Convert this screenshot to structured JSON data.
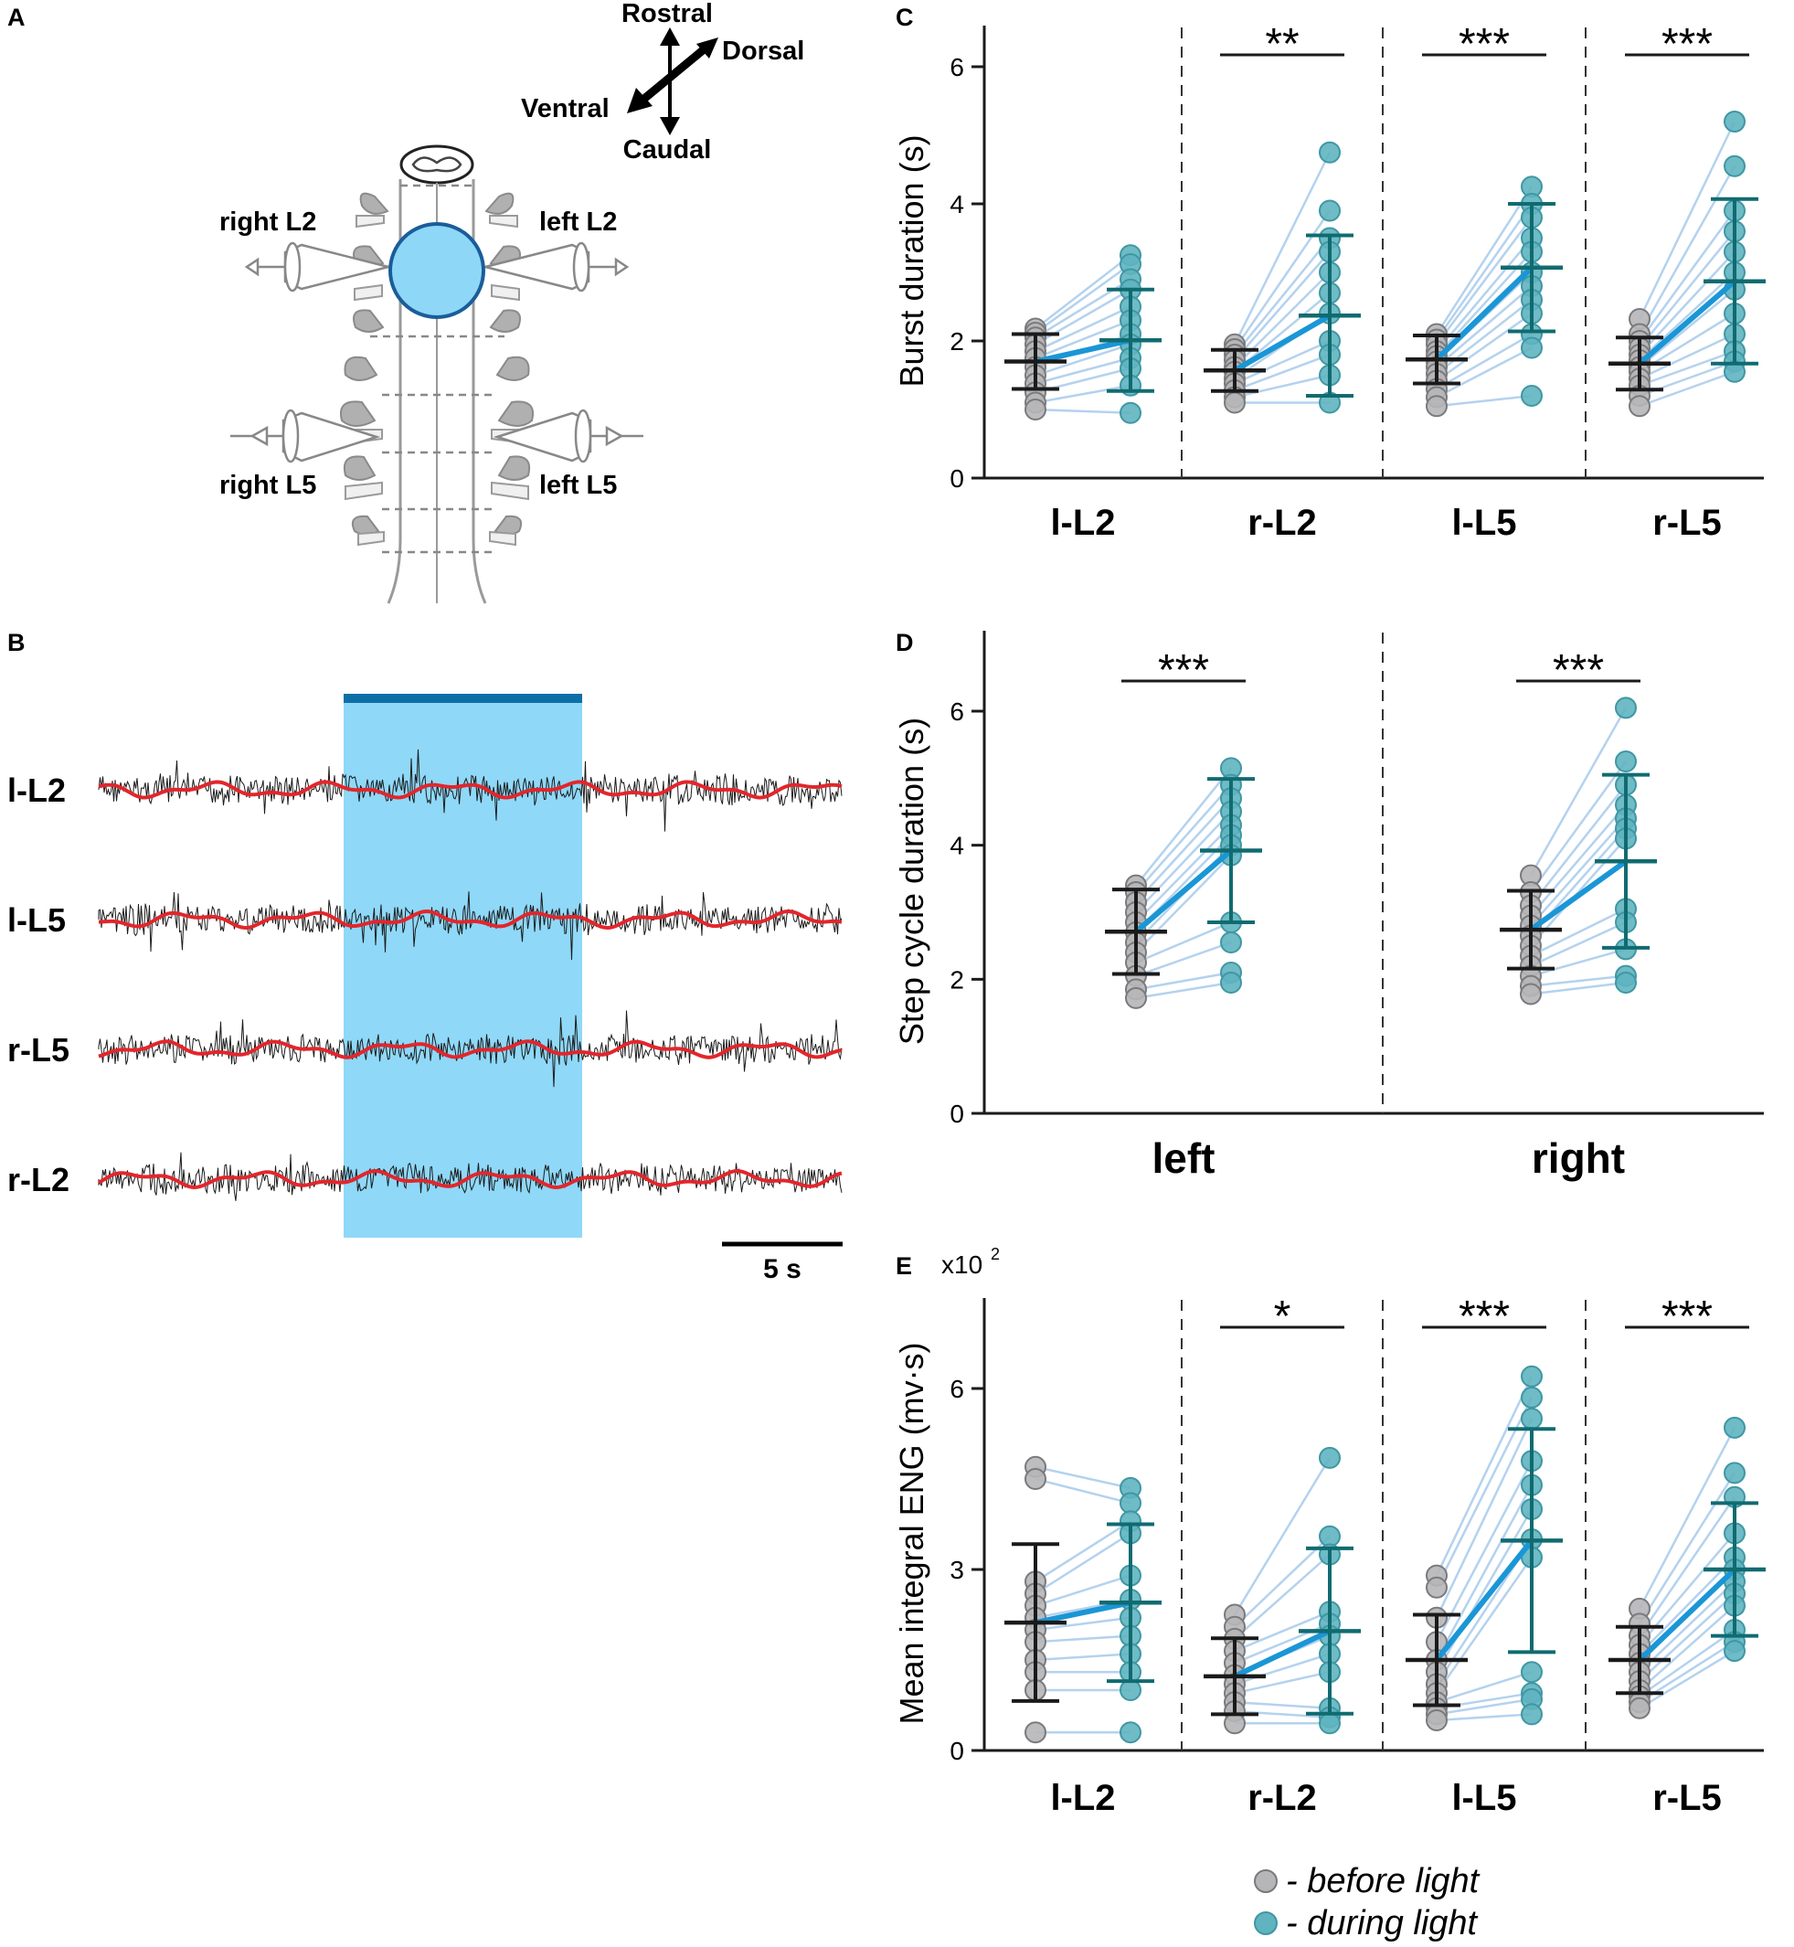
{
  "colors": {
    "before_fill": "#b6b6b8",
    "before_stroke": "#7a7a7c",
    "during_fill": "#5fb4c0",
    "during_stroke": "#3f97a3",
    "paired_line": "#b4d2ee",
    "mean_line": "#1a96d6",
    "before_bar": "#1a1a1a",
    "during_bar": "#106b70",
    "light": "#8fd8f8",
    "light_bar": "#0e6fa8",
    "trace": "#1a1a1a",
    "envelope": "#e2262c"
  },
  "panels": {
    "A": {
      "label": "A",
      "orientation": {
        "rostral": "Rostral",
        "dorsal": "Dorsal",
        "ventral": "Ventral",
        "caudal": "Caudal"
      },
      "roots": {
        "right_l2": "right L2",
        "left_l2": "left L2",
        "right_l5": "right L5",
        "left_l5": "left L5"
      }
    },
    "B": {
      "label": "B",
      "traces": [
        "l-L2",
        "l-L5",
        "r-L5",
        "r-L2"
      ],
      "scalebar": "5 s"
    },
    "C": {
      "label": "C"
    },
    "D": {
      "label": "D"
    },
    "E": {
      "label": "E"
    }
  },
  "legend": {
    "before": "- before light",
    "during": "- during light"
  },
  "chart_data": [
    {
      "id": "C",
      "type": "scatter",
      "ylabel": "Burst duration (s)",
      "ylim": [
        0,
        6.6
      ],
      "yticks": [
        "0",
        "2",
        "4",
        "6"
      ],
      "ytick_values": [
        0,
        2,
        4,
        6
      ],
      "categories": [
        "l-L2",
        "r-L2",
        "l-L5",
        "r-L5"
      ],
      "significance": [
        "",
        "**",
        "***",
        "***"
      ],
      "before": [
        [
          2.18,
          2.12,
          2.05,
          1.95,
          1.85,
          1.75,
          1.62,
          1.5,
          1.38,
          1.25,
          1.1,
          1.0
        ],
        [
          1.95,
          1.88,
          1.8,
          1.72,
          1.62,
          1.55,
          1.45,
          1.38,
          1.28,
          1.18,
          1.1
        ],
        [
          2.1,
          2.02,
          1.95,
          1.85,
          1.78,
          1.7,
          1.62,
          1.52,
          1.42,
          1.3,
          1.18,
          1.05
        ],
        [
          2.32,
          2.1,
          2.0,
          1.9,
          1.8,
          1.72,
          1.62,
          1.55,
          1.45,
          1.35,
          1.2,
          1.05
        ]
      ],
      "during": [
        [
          3.25,
          3.12,
          2.9,
          2.75,
          2.5,
          2.3,
          2.1,
          1.95,
          1.75,
          1.6,
          1.35,
          0.95
        ],
        [
          4.75,
          3.9,
          3.5,
          3.3,
          3.0,
          2.7,
          2.4,
          2.0,
          1.8,
          1.5,
          1.1
        ],
        [
          4.25,
          4.0,
          3.8,
          3.5,
          3.3,
          3.0,
          2.8,
          2.6,
          2.4,
          2.1,
          1.9,
          1.2
        ],
        [
          5.2,
          4.55,
          3.9,
          3.6,
          3.3,
          3.0,
          2.75,
          2.4,
          2.1,
          1.85,
          1.7,
          1.55
        ]
      ],
      "before_mean": [
        1.7,
        1.57,
        1.73,
        1.67
      ],
      "before_sd": [
        0.4,
        0.3,
        0.35,
        0.38
      ],
      "during_mean": [
        2.01,
        2.37,
        3.07,
        2.87
      ],
      "during_sd": [
        0.74,
        1.17,
        0.93,
        1.2
      ],
      "bottom_label_size": 40
    },
    {
      "id": "D",
      "type": "scatter",
      "ylabel": "Step cycle duration (s)",
      "ylim": [
        0,
        7.2
      ],
      "yticks": [
        "0",
        "2",
        "4",
        "6"
      ],
      "ytick_values": [
        0,
        2,
        4,
        6
      ],
      "categories": [
        "left",
        "right"
      ],
      "significance": [
        "***",
        "***"
      ],
      "before": [
        [
          3.4,
          3.3,
          3.15,
          3.0,
          2.85,
          2.7,
          2.55,
          2.4,
          2.25,
          2.05,
          1.85,
          1.72
        ],
        [
          3.55,
          3.3,
          3.1,
          2.95,
          2.8,
          2.65,
          2.5,
          2.35,
          2.2,
          2.05,
          1.9,
          1.78
        ]
      ],
      "during": [
        [
          5.15,
          4.9,
          4.7,
          4.5,
          4.3,
          4.15,
          4.0,
          3.85,
          2.85,
          2.55,
          2.1,
          1.95
        ],
        [
          6.05,
          5.25,
          4.9,
          4.6,
          4.4,
          4.25,
          4.1,
          3.05,
          2.85,
          2.45,
          2.05,
          1.95
        ]
      ],
      "before_mean": [
        2.71,
        2.74
      ],
      "before_sd": [
        0.63,
        0.58
      ],
      "during_mean": [
        3.92,
        3.76
      ],
      "during_sd": [
        1.07,
        1.29
      ],
      "bottom_label_size": 46
    },
    {
      "id": "E",
      "type": "scatter",
      "ylabel": "Mean integral ENG (mv·s)",
      "ylim": [
        0,
        7.5
      ],
      "yticks": [
        "0",
        "3",
        "6"
      ],
      "ytick_values": [
        0,
        3,
        6
      ],
      "multiplier": "x10",
      "multiplier_exp": "2",
      "categories": [
        "l-L2",
        "r-L2",
        "l-L5",
        "r-L5"
      ],
      "significance": [
        "",
        "*",
        "***",
        "***"
      ],
      "before": [
        [
          4.7,
          4.5,
          2.8,
          2.6,
          2.4,
          2.2,
          2.0,
          1.8,
          1.5,
          1.3,
          1.0,
          0.3
        ],
        [
          2.25,
          2.05,
          1.85,
          1.65,
          1.45,
          1.25,
          1.1,
          0.95,
          0.8,
          0.65,
          0.45
        ],
        [
          2.9,
          2.7,
          2.2,
          1.8,
          1.5,
          1.3,
          1.1,
          0.95,
          0.8,
          0.7,
          0.6,
          0.5
        ],
        [
          2.35,
          2.1,
          1.9,
          1.75,
          1.6,
          1.45,
          1.3,
          1.15,
          1.0,
          0.9,
          0.8,
          0.7
        ]
      ],
      "during": [
        [
          4.35,
          4.1,
          3.8,
          3.6,
          2.9,
          2.5,
          2.2,
          1.9,
          1.6,
          1.3,
          1.0,
          0.3
        ],
        [
          4.85,
          3.55,
          3.25,
          2.3,
          2.1,
          1.9,
          1.6,
          1.3,
          0.7,
          0.55,
          0.45
        ],
        [
          6.2,
          5.85,
          5.5,
          4.8,
          4.4,
          4.0,
          3.5,
          3.2,
          1.3,
          0.95,
          0.85,
          0.6
        ],
        [
          5.35,
          4.6,
          4.2,
          3.6,
          3.2,
          3.0,
          2.8,
          2.6,
          2.4,
          2.0,
          1.8,
          1.65
        ]
      ],
      "before_mean": [
        2.12,
        1.23,
        1.5,
        1.5
      ],
      "before_sd": [
        1.3,
        0.63,
        0.75,
        0.55
      ],
      "during_mean": [
        2.45,
        1.98,
        3.48,
        3.0
      ],
      "during_sd": [
        1.3,
        1.37,
        1.85,
        1.1
      ],
      "bottom_label_size": 40
    }
  ]
}
